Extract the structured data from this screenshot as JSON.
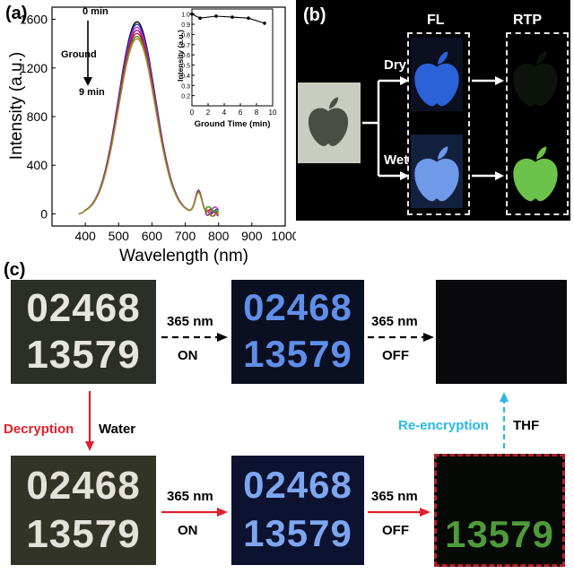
{
  "panel_a": {
    "label": "(a)",
    "inset_ylabel": "Intensity (a.u.)",
    "inset_xlabel": "Ground Time (min)",
    "annot_top": "0 min",
    "annot_mid": "Ground",
    "annot_bottom": "9 min"
  },
  "chart_data": [
    {
      "type": "line",
      "title": "",
      "xlabel": "Wavelength (nm)",
      "ylabel": "Intensity (a.u.)",
      "xlim": [
        300,
        1000
      ],
      "ylim": [
        -100,
        1700
      ],
      "xticks": [
        400,
        500,
        600,
        700,
        800,
        900,
        1000
      ],
      "yticks": [
        0,
        400,
        800,
        1200,
        1600
      ],
      "series": [
        {
          "color": "#000000",
          "peak": 1580
        },
        {
          "color": "#2b2bd6",
          "peak": 1560
        },
        {
          "color": "#c42bc4",
          "peak": 1535
        },
        {
          "color": "#8a1a7a",
          "peak": 1510
        },
        {
          "color": "#d22020",
          "peak": 1485
        },
        {
          "color": "#3a9a2a",
          "peak": 1460
        },
        {
          "color": "#a88a2a",
          "peak": 1440
        }
      ],
      "x_range": [
        380,
        800
      ],
      "peak_x": 555
    },
    {
      "type": "line",
      "title": "",
      "xlabel": "Ground Time (min)",
      "ylabel": "Intensity (a.u.)",
      "xlim": [
        0,
        10
      ],
      "ylim": [
        0.1,
        1.05
      ],
      "xticks": [
        0,
        2,
        4,
        6,
        8,
        10
      ],
      "yticks": [
        0.2,
        0.3,
        0.4,
        0.5,
        0.6,
        0.7,
        0.8,
        0.9,
        1.0
      ],
      "x": [
        0,
        1,
        3,
        5,
        7,
        9
      ],
      "y": [
        1.0,
        0.96,
        0.98,
        0.97,
        0.96,
        0.91
      ]
    }
  ],
  "panel_b": {
    "label": "(b)",
    "fl": "FL",
    "rtp": "RTP",
    "dry": "Dry",
    "wet": "Wet"
  },
  "panel_c": {
    "label": "(c)",
    "row1": "02468",
    "row2": "13579",
    "uv": "365 nm",
    "on": "ON",
    "off": "OFF",
    "decryption": "Decryption",
    "water": "Water",
    "reencryption": "Re-encryption",
    "thf": "THF",
    "colors": {
      "red": "#e0202a",
      "cyan": "#27b8e8"
    }
  }
}
